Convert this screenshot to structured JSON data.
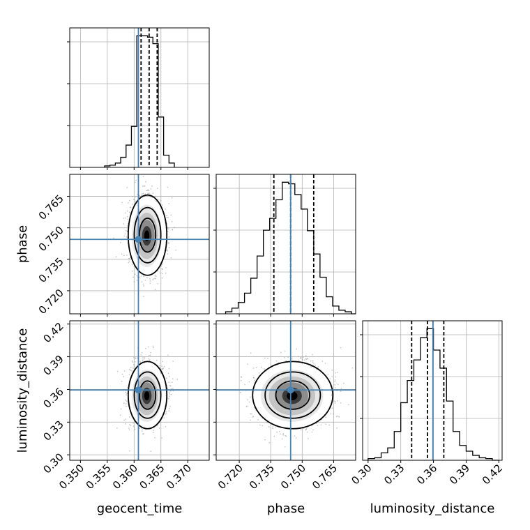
{
  "chart_data": {
    "type": "corner",
    "parameters": [
      "geocent_time",
      "phase",
      "luminosity_distance"
    ],
    "truths": {
      "geocent_time": 0.3608,
      "phase": 0.7445,
      "luminosity_distance": 0.3595
    },
    "truth_color": "#4682b4",
    "ranges": {
      "geocent_time": [
        0.348,
        0.374
      ],
      "phase": [
        0.709,
        0.7755
      ],
      "luminosity_distance": [
        0.295,
        0.423
      ]
    },
    "ticks": {
      "geocent_time": [
        "0.350",
        "0.355",
        "0.360",
        "0.365",
        "0.370"
      ],
      "phase": [
        "0.720",
        "0.735",
        "0.750",
        "0.765"
      ],
      "luminosity_distance": [
        "0.30",
        "0.33",
        "0.36",
        "0.39",
        "0.42"
      ]
    },
    "quantiles": {
      "geocent_time": [
        0.3613,
        0.3628,
        0.3643
      ],
      "phase": [
        0.7365,
        0.7445,
        0.7555
      ],
      "luminosity_distance": [
        0.34,
        0.3545,
        0.3695
      ]
    },
    "histograms": {
      "geocent_time": {
        "edges": [
          0.3545,
          0.3555,
          0.3565,
          0.3575,
          0.3585,
          0.3595,
          0.3605,
          0.3615,
          0.3625,
          0.3635,
          0.3645,
          0.3655,
          0.3665,
          0.3675
        ],
        "counts": [
          2,
          3,
          6,
          14,
          31,
          57,
          183,
          183,
          181,
          172,
          70,
          17,
          6
        ]
      },
      "phase": {
        "edges": [
          0.7135,
          0.7165,
          0.7195,
          0.7225,
          0.7255,
          0.7285,
          0.7315,
          0.7345,
          0.7375,
          0.7405,
          0.7435,
          0.7465,
          0.7495,
          0.7525,
          0.7555,
          0.7585,
          0.7615,
          0.7645,
          0.7675,
          0.7705,
          0.7735,
          0.7755
        ],
        "counts": [
          4,
          11,
          22,
          40,
          69,
          112,
          162,
          185,
          221,
          255,
          252,
          231,
          203,
          161,
          116,
          71,
          33,
          15,
          7,
          4,
          0
        ]
      },
      "luminosity_distance": {
        "edges": [
          0.3,
          0.306,
          0.312,
          0.318,
          0.324,
          0.33,
          0.336,
          0.342,
          0.348,
          0.354,
          0.36,
          0.366,
          0.372,
          0.378,
          0.384,
          0.39,
          0.396,
          0.402,
          0.408,
          0.414,
          0.42
        ],
        "counts": [
          2,
          3,
          9,
          15,
          35,
          70,
          97,
          122,
          149,
          160,
          134,
          112,
          72,
          35,
          18,
          11,
          6,
          3,
          2,
          0
        ]
      }
    },
    "joint": [
      {
        "x": "geocent_time",
        "y": "phase",
        "center": [
          0.3625,
          0.7465
        ],
        "sigma": [
          0.0016,
          0.0085
        ]
      },
      {
        "x": "geocent_time",
        "y": "luminosity_distance",
        "center": [
          0.3625,
          0.3548
        ],
        "sigma": [
          0.0016,
          0.0137
        ]
      },
      {
        "x": "phase",
        "y": "luminosity_distance",
        "center": [
          0.7455,
          0.3548
        ],
        "sigma": [
          0.0085,
          0.0137
        ]
      }
    ],
    "grid": true
  }
}
